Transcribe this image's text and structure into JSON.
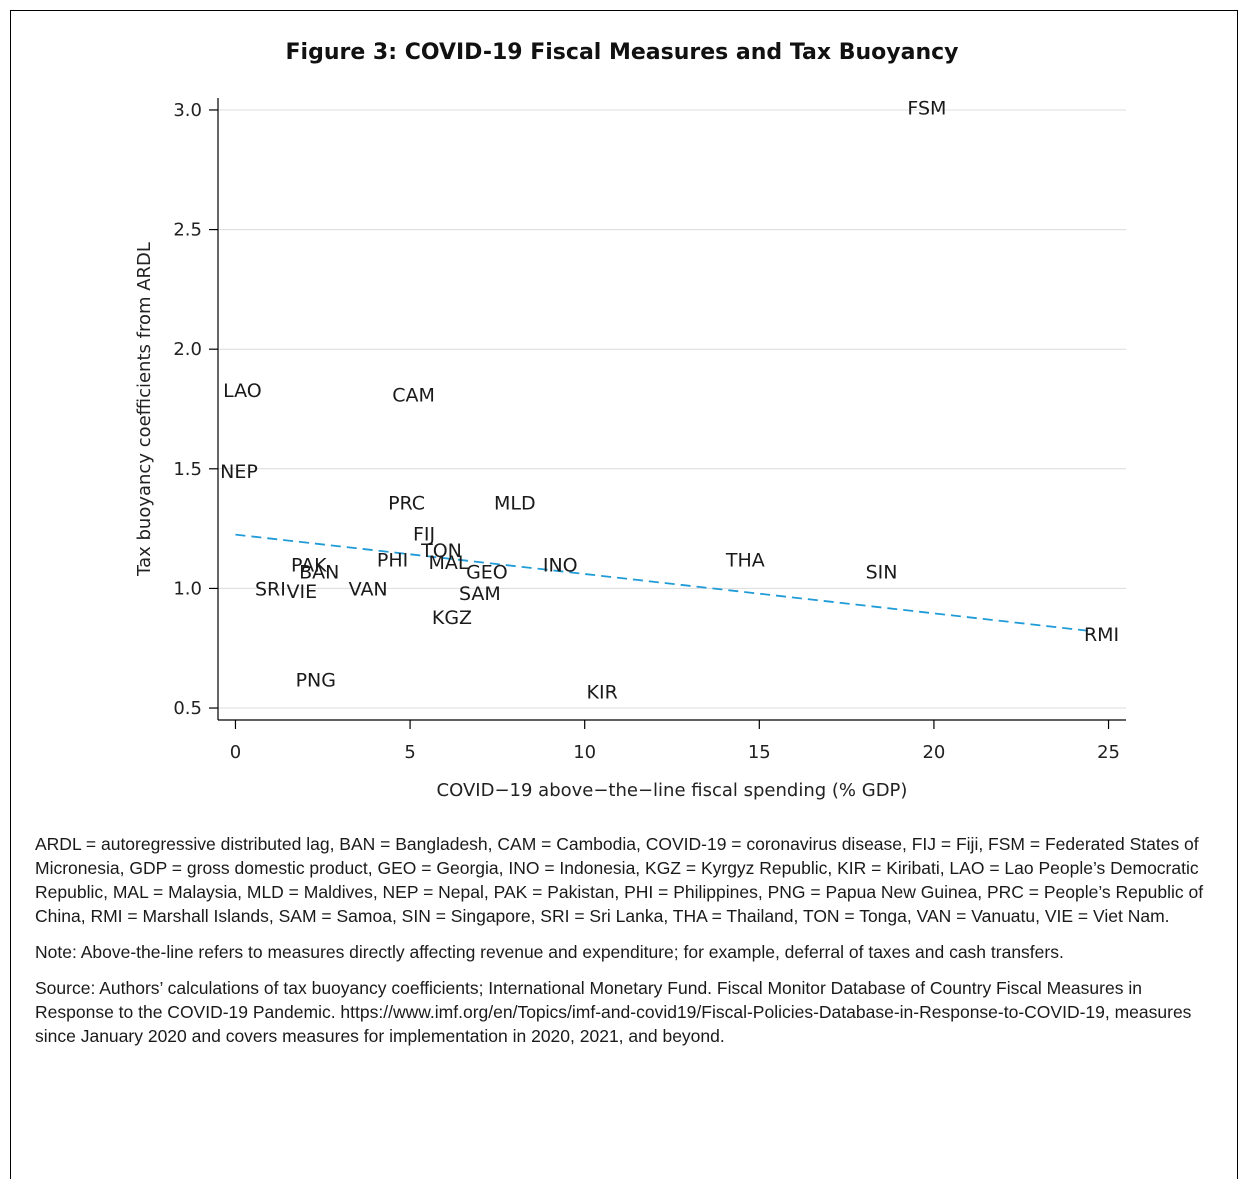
{
  "figure": {
    "title": "Figure 3: COVID-19 Fiscal Measures and Tax Buoyancy"
  },
  "chart_data": {
    "type": "scatter",
    "title": "Figure 3: COVID-19 Fiscal Measures and Tax Buoyancy",
    "xlabel": "COVID−19 above−the−line fiscal spending (% GDP)",
    "ylabel": "Tax buoyancy coefficients from ARDL",
    "xlim": [
      -0.5,
      25.5
    ],
    "ylim": [
      0.45,
      3.05
    ],
    "xticks": [
      0,
      5,
      10,
      15,
      20,
      25
    ],
    "yticks": [
      0.5,
      1.0,
      1.5,
      2.0,
      2.5,
      3.0
    ],
    "ytick_labels": [
      "0.5",
      "1.0",
      "1.5",
      "2.0",
      "2.5",
      "3.0"
    ],
    "grid": "horizontal",
    "marker": "country-label",
    "points": [
      {
        "label": "FSM",
        "x": 19.8,
        "y": 3.01
      },
      {
        "label": "LAO",
        "x": 0.2,
        "y": 1.83
      },
      {
        "label": "CAM",
        "x": 5.1,
        "y": 1.81
      },
      {
        "label": "NEP",
        "x": 0.1,
        "y": 1.49
      },
      {
        "label": "PRC",
        "x": 4.9,
        "y": 1.36
      },
      {
        "label": "MLD",
        "x": 8.0,
        "y": 1.36
      },
      {
        "label": "FIJ",
        "x": 5.4,
        "y": 1.23
      },
      {
        "label": "TON",
        "x": 5.9,
        "y": 1.16
      },
      {
        "label": "PHI",
        "x": 4.5,
        "y": 1.12
      },
      {
        "label": "MAL",
        "x": 6.1,
        "y": 1.11
      },
      {
        "label": "GEO",
        "x": 7.2,
        "y": 1.07
      },
      {
        "label": "INO",
        "x": 9.3,
        "y": 1.1
      },
      {
        "label": "THA",
        "x": 14.6,
        "y": 1.12
      },
      {
        "label": "SIN",
        "x": 18.5,
        "y": 1.07
      },
      {
        "label": "PAK",
        "x": 2.1,
        "y": 1.1
      },
      {
        "label": "BAN",
        "x": 2.4,
        "y": 1.07
      },
      {
        "label": "SRI",
        "x": 1.0,
        "y": 1.0
      },
      {
        "label": "VIE",
        "x": 1.9,
        "y": 0.99
      },
      {
        "label": "VAN",
        "x": 3.8,
        "y": 1.0
      },
      {
        "label": "SAM",
        "x": 7.0,
        "y": 0.98
      },
      {
        "label": "KGZ",
        "x": 6.2,
        "y": 0.88
      },
      {
        "label": "RMI",
        "x": 24.8,
        "y": 0.81
      },
      {
        "label": "PNG",
        "x": 2.3,
        "y": 0.62
      },
      {
        "label": "KIR",
        "x": 10.5,
        "y": 0.57
      }
    ],
    "fit_line": {
      "x": [
        0,
        24.6
      ],
      "y": [
        1.225,
        0.82
      ],
      "style": "dashed",
      "color": "#1f9bd7"
    }
  },
  "notes": {
    "abbreviations": "ARDL = autoregressive distributed lag, BAN = Bangladesh, CAM = Cambodia, COVID-19 = coronavirus disease, FIJ = Fiji, FSM = Federated States of Micronesia, GDP = gross domestic product, GEO = Georgia, INO = Indonesia, KGZ = Kyrgyz Republic, KIR = Kiribati, LAO = Lao People’s Democratic Republic, MAL = Malaysia, MLD = Maldives, NEP = Nepal, PAK = Pakistan, PHI = Philippines, PNG = Papua New Guinea, PRC = People’s Republic of China, RMI = Marshall Islands, SAM = Samoa, SIN = Singapore, SRI = Sri Lanka, THA = Thailand, TON = Tonga, VAN = Vanuatu, VIE = Viet Nam.",
    "note": "Note: Above-the-line refers to measures directly affecting revenue and expenditure; for example, deferral of taxes and cash transfers.",
    "source": "Source: Authors’ calculations of tax buoyancy coefficients; International Monetary Fund. Fiscal Monitor Database of Country Fiscal Measures in Response to the COVID-19 Pandemic. https://www.imf.org/en/Topics/imf-and-covid19/Fiscal-Policies-Database-in-Response-to-COVID-19, measures since January 2020 and covers measures for implementation in 2020, 2021, and beyond."
  }
}
